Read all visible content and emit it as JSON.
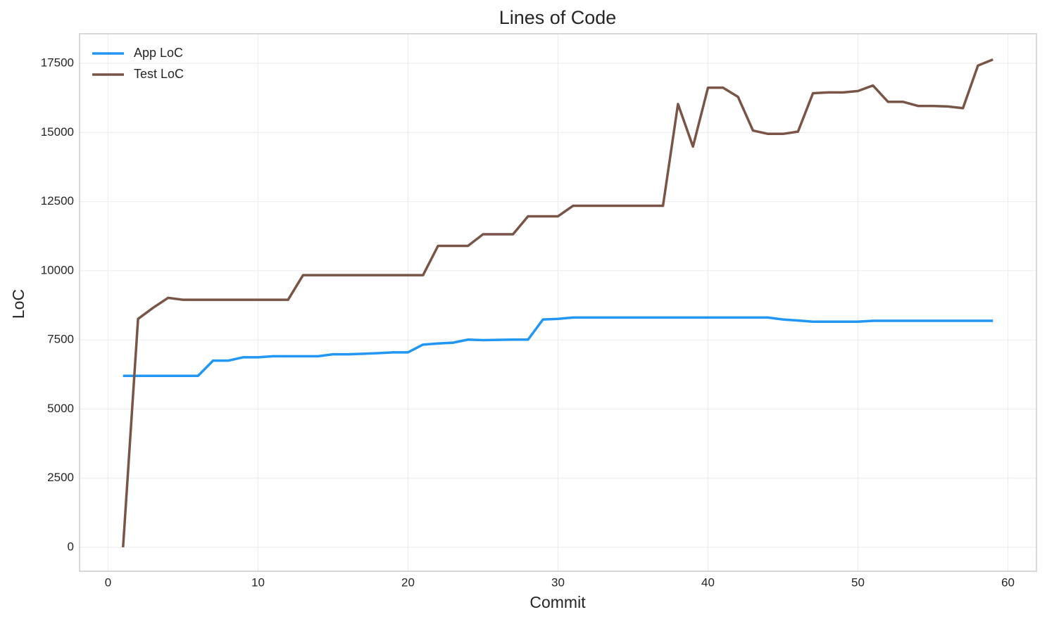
{
  "chart_data": {
    "type": "line",
    "title": "Lines of Code",
    "x_label": "Commit",
    "y_label": "LoC",
    "x": [
      1,
      2,
      3,
      4,
      5,
      6,
      7,
      8,
      9,
      10,
      11,
      12,
      13,
      14,
      15,
      16,
      17,
      18,
      19,
      20,
      21,
      22,
      23,
      24,
      25,
      26,
      27,
      28,
      29,
      30,
      31,
      32,
      33,
      34,
      35,
      36,
      37,
      38,
      39,
      40,
      41,
      42,
      43,
      44,
      45,
      46,
      47,
      48,
      49,
      50,
      51,
      52,
      53,
      54,
      55,
      56,
      57,
      58,
      59
    ],
    "series": [
      {
        "name": "App LoC",
        "color": "#2196f3",
        "values": [
          6200,
          6200,
          6200,
          6200,
          6200,
          6200,
          6750,
          6750,
          6870,
          6870,
          6910,
          6910,
          6910,
          6910,
          6980,
          6980,
          7000,
          7020,
          7050,
          7050,
          7330,
          7370,
          7400,
          7510,
          7490,
          7500,
          7510,
          7510,
          8240,
          8260,
          8310,
          8310,
          8310,
          8310,
          8310,
          8310,
          8310,
          8310,
          8310,
          8310,
          8310,
          8310,
          8310,
          8310,
          8240,
          8200,
          8160,
          8160,
          8160,
          8160,
          8190,
          8190,
          8190,
          8190,
          8190,
          8190,
          8190,
          8190,
          8190
        ]
      },
      {
        "name": "Test LoC",
        "color": "#795548",
        "values": [
          0,
          8260,
          8660,
          9020,
          8950,
          8950,
          8950,
          8950,
          8950,
          8950,
          8950,
          8950,
          9840,
          9840,
          9840,
          9840,
          9840,
          9840,
          9840,
          9840,
          9840,
          10900,
          10900,
          10900,
          11320,
          11320,
          11320,
          11970,
          11970,
          11970,
          12350,
          12350,
          12350,
          12350,
          12350,
          12350,
          12350,
          16030,
          14490,
          16620,
          16620,
          16290,
          15070,
          14950,
          14950,
          15030,
          16420,
          16450,
          16450,
          16500,
          16700,
          16110,
          16110,
          15960,
          15960,
          15940,
          15880,
          17420,
          17640
        ]
      }
    ],
    "xlim": [
      -1.9,
      61.9
    ],
    "ylim": [
      -865,
      18570
    ],
    "xticks": [
      0,
      10,
      20,
      30,
      40,
      50,
      60
    ],
    "yticks": [
      0,
      2500,
      5000,
      7500,
      10000,
      12500,
      15000,
      17500
    ],
    "grid": true,
    "legend": "upper left"
  }
}
